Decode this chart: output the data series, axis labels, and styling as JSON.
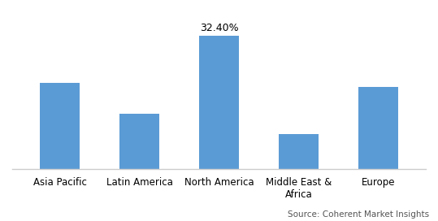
{
  "categories": [
    "Asia Pacific",
    "Latin America",
    "North America",
    "Middle East &\nAfrica",
    "Europe"
  ],
  "values": [
    21.0,
    13.5,
    32.4,
    8.5,
    20.0
  ],
  "bar_color": "#5b9bd5",
  "label_only_bar": 2,
  "label_text": "32.40%",
  "ylabel": "",
  "xlabel": "",
  "source_text": "Source: Coherent Market Insights",
  "ylim": [
    0,
    38
  ],
  "bar_width": 0.5,
  "background_color": "#ffffff",
  "label_fontsize": 9,
  "tick_fontsize": 8.5,
  "source_fontsize": 7.5
}
